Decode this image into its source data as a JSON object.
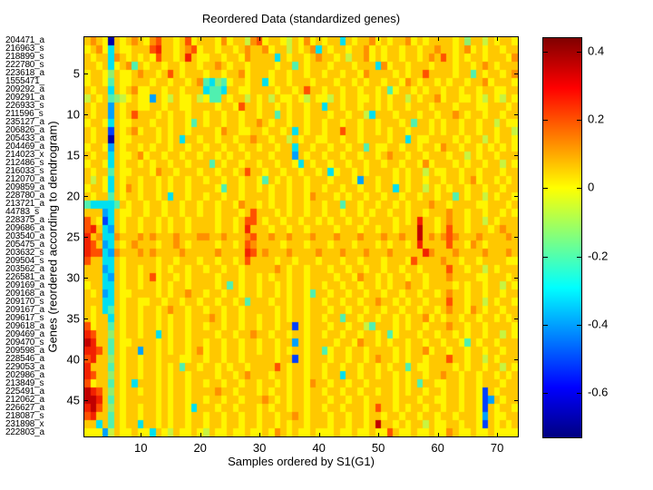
{
  "chart_data": {
    "type": "heatmap",
    "title": "Reordered Data (standardized genes)",
    "xlabel": "Samples ordered by S1(G1)",
    "ylabel": "Genes (reordered according to dendrogram)",
    "n_rows": 49,
    "n_cols": 73,
    "x_ticks": [
      10,
      20,
      30,
      40,
      50,
      60,
      70
    ],
    "y_ticks": [
      5,
      10,
      15,
      20,
      25,
      30,
      35,
      40,
      45
    ],
    "row_labels": [
      "204471_a",
      "216963_s",
      "218899_s",
      "222780_s",
      "223618_a",
      "1555471_",
      "209292_a",
      "209291_a",
      "226933_s",
      "211596_s",
      "235127_a",
      "206826_a",
      "205433_a",
      "204469_a",
      "214023_x",
      "212486_s",
      "216033_s",
      "212070_a",
      "209859_a",
      "228780_a",
      "213721_a",
      "44783_s",
      "228375_a",
      "209686_a",
      "203540_a",
      "205475_a",
      "203632_s",
      "209504_s",
      "203562_a",
      "226581_a",
      "209169_a",
      "209168_a",
      "209170_s",
      "209167_a",
      "209617_s",
      "209618_a",
      "209469_a",
      "209470_s",
      "209598_a",
      "228546_a",
      "229053_a",
      "202986_a",
      "213849_s",
      "225491_a",
      "212062_a",
      "226627_a",
      "218087_s",
      "231898_x",
      "222803_a"
    ],
    "colorbar": {
      "colormap": "jet",
      "vmax": 0.44,
      "vmin": -0.73,
      "tick_values": [
        0.4,
        0.2,
        0,
        -0.2,
        -0.4,
        -0.6
      ],
      "tick_labels": [
        "0.4",
        "0.2",
        "0",
        "-0.2",
        "-0.4",
        "-0.6"
      ],
      "gradient_stops": [
        "#800000 0%",
        "#ff0000 12.5%",
        "#ffff00 37.5%",
        "#00ffff 62.5%",
        "#0000ff 87.5%",
        "#000080 100%"
      ]
    },
    "palette": {
      "0": {
        "value": -0.72,
        "color": "#0000aa"
      },
      "1": {
        "value": -0.55,
        "color": "#0040ff"
      },
      "2": {
        "value": -0.42,
        "color": "#00a0ff"
      },
      "3": {
        "value": -0.32,
        "color": "#00e0f0"
      },
      "4": {
        "value": -0.22,
        "color": "#50f0b0"
      },
      "5": {
        "value": -0.13,
        "color": "#90ee70"
      },
      "6": {
        "value": -0.05,
        "color": "#c8f440"
      },
      "7": {
        "value": 0.03,
        "color": "#fff500"
      },
      "8": {
        "value": 0.12,
        "color": "#ffc800"
      },
      "9": {
        "value": 0.21,
        "color": "#ff9000"
      },
      "a": {
        "value": 0.3,
        "color": "#ff5000"
      },
      "r": {
        "value": 0.37,
        "color": "#f22000"
      },
      "d": {
        "value": 0.44,
        "color": "#c00000"
      }
    },
    "matrix_encoding": "rows top-to-bottom; each char = one cell left-to-right, mapped via palette",
    "matrix": [
      "898708789879a8878a78887978869a78876879787883878897878897878888785886878 87",
      "78973877888ar88789a788788789889788687893878878897878878878898878978788788",
      "878839878787a8878r8778878879888838788789887868897878878878 98a878788788879",
      "8878378948788788788788987887888878848788878887888397887888788878878987888",
      "788758778988 78a878887887889788878878878878878879888878788a888878848788789",
      "7887487788878878878943547887883788788878887887878878879878878788788978887",
      "8788387897788788788834438877888878878a8878878878878478878788788788788 7788",
      "6878456787728768778674487886878687787687768788778787886878897887787687687",
      "8788287887788788778888788 7a8878878788788388788788787887888788878887788878",
      "87882878a8887878878878878878878848788788878878863888788878878898788788788",
      "7887387788878878874878878878898788788788788788788788878488787887887886 87",
      "8788187897887878878888798877887887838788788a887887878878887878878878 87886",
      "8788087788887878388788788788988788687887788788788887883877888878788687887",
      "7887287887878878878878878878878878838878878878848778878878879887887878787",
      "8788387789788788788788787887888788828788788788788789887887888788687887888",
      "7887387887878878878884878878878878873878878878878878878879788878788788687",
      "8788487788879887888788788 78a8878878878878378878788887878868778878878 88788",
      "8687387887887878878878878878874878788788878887288788787887887887897887878",
      "7887387987887878878888748878878788788788788788788788387886878788788788788",
      "8788487887887838878878878878888788788798887878878878878878878848788687887",
      "4333348788788788788788788798878788788788788488788788787888988788887788878",
      "8882387788788788788788788878a88878788788788788787887887887888988788788787",
      "a87138788788787887888878878aa8788788788787887887888878 78r8878988788687888",
      "ar832878878878788788887887 8r888788788788887888788788788 8d8878a88788878988",
      "r89339888989888988899889888 9a8898898889888988898889889 88d8989a98889888898",
      "ra823878988878898788887887 8a988887888788878887888787887 8r8888a88798788888",
      "raa3298889898888988888988 88ra898889888898889888988898888 8r9888988889888988",
      "a883387888887887888788788 78a8888788788878887887888788 87a8888988788788887",
      "8882387887887878878878878878888898788788878878878878878878888a88788687888",
      "88832878878a788787888878887887878878878888788798878788788788898888778 8878",
      "7883387887887878878888784878878878788788788788788787889887888878788788687",
      "8782387788887878898878878878878878788748878878878878878878878988788788788",
      "8883387887788788788788788784888788788788788788788988787887888a88788687887",
      "8783487887887898878878878878888878788788878878878878878878878988798788788",
      "8788387887887878878889878878878878788788788488788788787889787887887887878",
      "a788487887887878878878878878878878818788878878864888787887888988788788887",
      "ra88587887883878878888788788988788788788788788788784788878878878788788687",
      "dr88487788887878878878878878878878828788887887988787887887887887487887888",
      "rra8487882887878878978878878878878788788478878878888787889788788788788788",
      "ar88587887887888778878878878888878818788878878878988787887888a88788687888",
      "r888487887887878488788787887888 8a87887887887887887878848778888787887 88687",
      "ra88587887887878878888788789888788788788788388788788787887889887887887878",
      "a788487838887878878878878878878878788798878878878888787848877887887888788",
      "dra8587887887878878888988788878788788788788788788788787887887887887187888",
      "ddr848788888787887887887887888987878878887887887888878887887788788 7128788",
      "rda85878878878788738887887888787887887887887888 78a8878788788788788 7187887",
      "ar88487887887878878878878878878878898788878878878878878878878878887287788",
      "8838487883887878878878878878878878788788878878878d887878868778878 87187878",
      "7772687787738768778768778778778798787787778778778 77a877877877987787787777"
    ]
  }
}
